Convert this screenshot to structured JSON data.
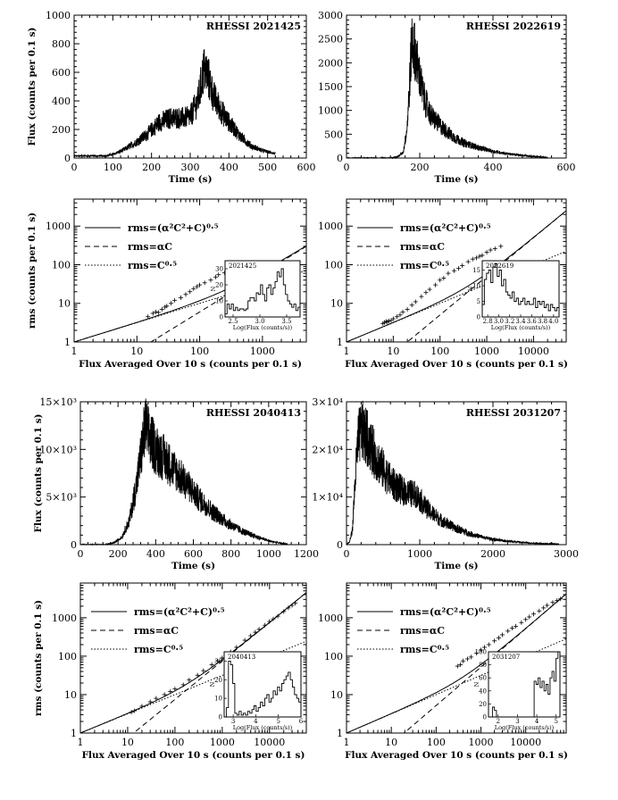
{
  "figure": {
    "type_note": "Eight-panel multi-figure of RHESSI flare light curves and rms vs flux plots"
  },
  "chart_data": [
    {
      "id": "lc1",
      "type": "line",
      "title": "RHESSI 2021425",
      "xlabel": "Time (s)",
      "ylabel": "Flux (counts per 0.1 s)",
      "xlim": [
        0,
        600
      ],
      "ylim": [
        0,
        1000
      ],
      "xticks": [
        "0",
        "100",
        "200",
        "300",
        "400",
        "500",
        "600"
      ],
      "yticks": [
        "0",
        "200",
        "400",
        "600",
        "800",
        "1000"
      ],
      "series": [
        {
          "name": "flux",
          "envelope_points": [
            [
              0,
              15
            ],
            [
              40,
              15
            ],
            [
              80,
              15
            ],
            [
              100,
              25
            ],
            [
              130,
              60
            ],
            [
              160,
              110
            ],
            [
              190,
              170
            ],
            [
              220,
              250
            ],
            [
              250,
              280
            ],
            [
              280,
              280
            ],
            [
              300,
              290
            ],
            [
              320,
              400
            ],
            [
              335,
              620
            ],
            [
              345,
              580
            ],
            [
              360,
              430
            ],
            [
              380,
              330
            ],
            [
              400,
              250
            ],
            [
              430,
              150
            ],
            [
              460,
              80
            ],
            [
              490,
              50
            ],
            [
              520,
              30
            ]
          ]
        }
      ]
    },
    {
      "id": "lc2",
      "type": "line",
      "title": "RHESSI 2022619",
      "xlabel": "Time (s)",
      "ylabel": "",
      "xlim": [
        0,
        600
      ],
      "ylim": [
        0,
        3000
      ],
      "xticks": [
        "0",
        "200",
        "400",
        "600"
      ],
      "yticks": [
        "0",
        "500",
        "1000",
        "1500",
        "2000",
        "2500",
        "3000"
      ],
      "series": [
        {
          "name": "flux",
          "envelope_points": [
            [
              0,
              0
            ],
            [
              120,
              0
            ],
            [
              140,
              30
            ],
            [
              155,
              120
            ],
            [
              165,
              600
            ],
            [
              172,
              1500
            ],
            [
              178,
              2450
            ],
            [
              185,
              2300
            ],
            [
              195,
              1900
            ],
            [
              210,
              1300
            ],
            [
              230,
              900
            ],
            [
              260,
              650
            ],
            [
              290,
              450
            ],
            [
              320,
              320
            ],
            [
              360,
              220
            ],
            [
              400,
              140
            ],
            [
              450,
              80
            ],
            [
              500,
              40
            ],
            [
              550,
              10
            ]
          ]
        }
      ]
    },
    {
      "id": "rms1",
      "type": "line",
      "title": "",
      "xlabel": "Flux Averaged Over 10 s (counts per 0.1 s)",
      "ylabel": "rms (counts per 0.1 s)",
      "xscale": "log",
      "yscale": "log",
      "xlim": [
        1,
        5000
      ],
      "ylim": [
        1,
        5000
      ],
      "xticks": [
        "1",
        "10",
        "100",
        "1000"
      ],
      "yticks": [
        "1",
        "10",
        "100",
        "1000"
      ],
      "alpha": 0.06,
      "legend": [
        "rms=(α²C²+C)⁰·⁵",
        "rms=αC",
        "rms=C⁰·⁵"
      ],
      "scatter": [
        [
          15,
          4.5
        ],
        [
          18,
          5.5
        ],
        [
          20,
          6
        ],
        [
          22,
          5.8
        ],
        [
          25,
          7
        ],
        [
          28,
          8
        ],
        [
          30,
          8.5
        ],
        [
          35,
          10
        ],
        [
          40,
          12
        ],
        [
          50,
          14
        ],
        [
          60,
          17
        ],
        [
          70,
          20
        ],
        [
          80,
          24
        ],
        [
          90,
          27
        ],
        [
          100,
          30
        ],
        [
          120,
          34
        ],
        [
          150,
          40
        ],
        [
          180,
          48
        ],
        [
          200,
          55
        ],
        [
          250,
          62
        ],
        [
          300,
          70
        ],
        [
          350,
          78
        ],
        [
          400,
          85
        ]
      ],
      "inset": {
        "title": "2021425",
        "xlabel": "Log(Flux (counts/s))",
        "ylabel": "N",
        "xlim": [
          2.35,
          3.75
        ],
        "ylim": [
          0,
          35
        ],
        "xticks": [
          "2.5",
          "3.0",
          "3.5"
        ],
        "yticks": [
          "0",
          "10",
          "20",
          "30"
        ],
        "hist": [
          2,
          8,
          5,
          8,
          4,
          6,
          4,
          5,
          5,
          4,
          5,
          10,
          12,
          12,
          10,
          15,
          14,
          20,
          14,
          10,
          18,
          20,
          14,
          18,
          22,
          28,
          25,
          30,
          20,
          14,
          10,
          8,
          6,
          8,
          4,
          6
        ]
      }
    },
    {
      "id": "rms2",
      "type": "line",
      "title": "",
      "xlabel": "Flux Averaged Over 10 s (counts per 0.1 s)",
      "ylabel": "",
      "xscale": "log",
      "yscale": "log",
      "xlim": [
        1,
        50000
      ],
      "ylim": [
        1,
        5000
      ],
      "xticks": [
        "1",
        "10",
        "100",
        "1000",
        "10000"
      ],
      "yticks": [
        "1",
        "10",
        "100",
        "1000"
      ],
      "alpha": 0.05,
      "legend": [
        "rms=(α²C²+C)⁰·⁵",
        "rms=αC",
        "rms=C⁰·⁵"
      ],
      "scatter": [
        [
          6,
          3
        ],
        [
          6.5,
          3.2
        ],
        [
          7,
          3.4
        ],
        [
          7.5,
          3.3
        ],
        [
          8,
          3.5
        ],
        [
          9,
          3.6
        ],
        [
          10,
          4
        ],
        [
          12,
          4.5
        ],
        [
          14,
          5
        ],
        [
          16,
          6
        ],
        [
          20,
          7
        ],
        [
          25,
          9
        ],
        [
          30,
          11
        ],
        [
          40,
          15
        ],
        [
          50,
          19
        ],
        [
          60,
          23
        ],
        [
          80,
          30
        ],
        [
          100,
          40
        ],
        [
          120,
          45
        ],
        [
          150,
          60
        ],
        [
          200,
          70
        ],
        [
          250,
          80
        ],
        [
          300,
          95
        ],
        [
          400,
          120
        ],
        [
          500,
          140
        ],
        [
          600,
          150
        ],
        [
          700,
          165
        ],
        [
          800,
          175
        ],
        [
          1000,
          210
        ],
        [
          1200,
          240
        ],
        [
          1500,
          260
        ],
        [
          2000,
          300
        ]
      ],
      "inset": {
        "title": "2022619",
        "xlabel": "Log(Flux (counts/s))",
        "ylabel": "N",
        "xlim": [
          2.7,
          4.1
        ],
        "ylim": [
          0,
          18
        ],
        "xticks": [
          "2.8",
          "3.0",
          "3.2",
          "3.4",
          "3.6",
          "3.8",
          "4.0"
        ],
        "yticks": [
          "0",
          "5",
          "10",
          "15"
        ],
        "hist": [
          4,
          12,
          14,
          15,
          11,
          16,
          17,
          13,
          15,
          10,
          12,
          8,
          7,
          6,
          8,
          5,
          6,
          4,
          5,
          6,
          4,
          5,
          4,
          4,
          6,
          3,
          5,
          4,
          5,
          3,
          4,
          2,
          4,
          3,
          2,
          3
        ]
      }
    },
    {
      "id": "lc3",
      "type": "line",
      "title": "RHESSI 2040413",
      "xlabel": "Time (s)",
      "ylabel": "Flux (counts per 0.1 s)",
      "xlim": [
        0,
        1200
      ],
      "ylim": [
        0,
        15000
      ],
      "xticks": [
        "0",
        "200",
        "400",
        "600",
        "800",
        "1000",
        "1200"
      ],
      "yticks": [
        "0",
        "5×10³",
        "10×10³",
        "15×10³"
      ],
      "series": [
        {
          "name": "flux",
          "envelope_points": [
            [
              0,
              0
            ],
            [
              130,
              0
            ],
            [
              180,
              200
            ],
            [
              220,
              800
            ],
            [
              260,
              2500
            ],
            [
              300,
              6500
            ],
            [
              330,
              10500
            ],
            [
              345,
              12500
            ],
            [
              360,
              11500
            ],
            [
              400,
              10000
            ],
            [
              450,
              9000
            ],
            [
              500,
              7800
            ],
            [
              560,
              6500
            ],
            [
              620,
              5000
            ],
            [
              700,
              3500
            ],
            [
              780,
              2300
            ],
            [
              860,
              1400
            ],
            [
              940,
              800
            ],
            [
              1000,
              400
            ],
            [
              1060,
              150
            ],
            [
              1100,
              50
            ]
          ]
        }
      ]
    },
    {
      "id": "lc4",
      "type": "line",
      "title": "RHESSI 2031207",
      "xlabel": "Time (s)",
      "ylabel": "",
      "xlim": [
        0,
        3000
      ],
      "ylim": [
        0,
        30000
      ],
      "xticks": [
        "0",
        "1000",
        "2000",
        "3000"
      ],
      "yticks": [
        "0",
        "1×10⁴",
        "2×10⁴",
        "3×10⁴"
      ],
      "series": [
        {
          "name": "flux",
          "envelope_points": [
            [
              0,
              0
            ],
            [
              40,
              500
            ],
            [
              80,
              3000
            ],
            [
              120,
              14000
            ],
            [
              160,
              22000
            ],
            [
              200,
              24000
            ],
            [
              260,
              23000
            ],
            [
              350,
              20000
            ],
            [
              450,
              17000
            ],
            [
              550,
              14500
            ],
            [
              650,
              12500
            ],
            [
              800,
              11000
            ],
            [
              950,
              10500
            ],
            [
              1100,
              7500
            ],
            [
              1300,
              5000
            ],
            [
              1500,
              3400
            ],
            [
              1700,
              2200
            ],
            [
              1900,
              1400
            ],
            [
              2100,
              900
            ],
            [
              2300,
              600
            ],
            [
              2500,
              350
            ],
            [
              2700,
              200
            ],
            [
              2900,
              100
            ]
          ]
        }
      ]
    },
    {
      "id": "rms3",
      "type": "line",
      "title": "",
      "xlabel": "Flux Averaged Over 10 s (counts per 0.1 s)",
      "ylabel": "rms (counts per 0.1 s)",
      "xscale": "log",
      "yscale": "log",
      "xlim": [
        1,
        60000
      ],
      "ylim": [
        1,
        8000
      ],
      "xticks": [
        "1",
        "10",
        "100",
        "1000",
        "10000"
      ],
      "yticks": [
        "1",
        "10",
        "100",
        "1000"
      ],
      "alpha": 0.075,
      "legend": [
        "rms=(α²C²+C)⁰·⁵",
        "rms=αC",
        "rms=C⁰·⁵"
      ],
      "scatter": [
        [
          12,
          3.5
        ],
        [
          14,
          3.8
        ],
        [
          20,
          5
        ],
        [
          30,
          6.5
        ],
        [
          40,
          8
        ],
        [
          60,
          10
        ],
        [
          80,
          12
        ],
        [
          100,
          14
        ],
        [
          150,
          18
        ],
        [
          200,
          24
        ],
        [
          300,
          32
        ],
        [
          400,
          42
        ],
        [
          600,
          60
        ],
        [
          800,
          75
        ],
        [
          1000,
          90
        ],
        [
          1500,
          130
        ],
        [
          2000,
          170
        ],
        [
          3000,
          260
        ],
        [
          4000,
          340
        ],
        [
          5000,
          420
        ],
        [
          6000,
          500
        ],
        [
          8000,
          640
        ],
        [
          10000,
          800
        ],
        [
          12000,
          930
        ],
        [
          15000,
          1100
        ],
        [
          20000,
          1450
        ],
        [
          25000,
          1800
        ],
        [
          30000,
          2100
        ],
        [
          35000,
          2400
        ]
      ],
      "inset": {
        "title": "2040413",
        "xlabel": "Log(Flux (counts/s))",
        "ylabel": "N",
        "xlim": [
          2.6,
          6.0
        ],
        "ylim": [
          0,
          35
        ],
        "xticks": [
          "3",
          "4",
          "5",
          "6"
        ],
        "yticks": [
          "0",
          "10",
          "20",
          "30"
        ],
        "hist": [
          0,
          5,
          30,
          28,
          18,
          2,
          1,
          3,
          1,
          2,
          1,
          3,
          2,
          4,
          6,
          3,
          5,
          8,
          6,
          10,
          12,
          8,
          10,
          14,
          12,
          16,
          14,
          18,
          20,
          22,
          24,
          20,
          16,
          12,
          10,
          8
        ]
      }
    },
    {
      "id": "rms4",
      "type": "line",
      "title": "",
      "xlabel": "Flux Averaged Over 10 s (counts per 0.1 s)",
      "ylabel": "",
      "xscale": "log",
      "yscale": "log",
      "xlim": [
        1,
        80000
      ],
      "ylim": [
        1,
        8000
      ],
      "xticks": [
        "1",
        "10",
        "100",
        "1000",
        "10000"
      ],
      "yticks": [
        "1",
        "10",
        "100",
        "1000"
      ],
      "alpha": 0.052,
      "legend": [
        "rms=(α²C²+C)⁰·⁵",
        "rms=αC",
        "rms=C⁰·⁵"
      ],
      "scatter": [
        [
          300,
          55
        ],
        [
          350,
          60
        ],
        [
          400,
          75
        ],
        [
          500,
          85
        ],
        [
          600,
          95
        ],
        [
          800,
          120
        ],
        [
          1000,
          145
        ],
        [
          1200,
          170
        ],
        [
          1500,
          200
        ],
        [
          2000,
          250
        ],
        [
          2500,
          300
        ],
        [
          3000,
          360
        ],
        [
          4000,
          450
        ],
        [
          5000,
          540
        ],
        [
          6000,
          600
        ],
        [
          8000,
          750
        ],
        [
          10000,
          900
        ],
        [
          12000,
          1050
        ],
        [
          15000,
          1250
        ],
        [
          20000,
          1500
        ],
        [
          25000,
          1800
        ],
        [
          30000,
          2100
        ],
        [
          40000,
          2500
        ],
        [
          50000,
          2800
        ],
        [
          60000,
          3100
        ]
      ],
      "inset": {
        "title": "2031207",
        "xlabel": "Log(Flux (counts/s))",
        "ylabel": "N",
        "xlim": [
          1.5,
          5.2
        ],
        "ylim": [
          0,
          100
        ],
        "xticks": [
          "2",
          "3",
          "4",
          "5"
        ],
        "yticks": [
          "0",
          "20",
          "40",
          "60",
          "80",
          "100"
        ],
        "hist": [
          0,
          0,
          15,
          10,
          0,
          0,
          0,
          0,
          0,
          0,
          0,
          0,
          0,
          0,
          0,
          0,
          0,
          0,
          0,
          0,
          0,
          0,
          0,
          55,
          50,
          60,
          45,
          55,
          40,
          50,
          35,
          60,
          70,
          55,
          90,
          100
        ]
      }
    }
  ]
}
